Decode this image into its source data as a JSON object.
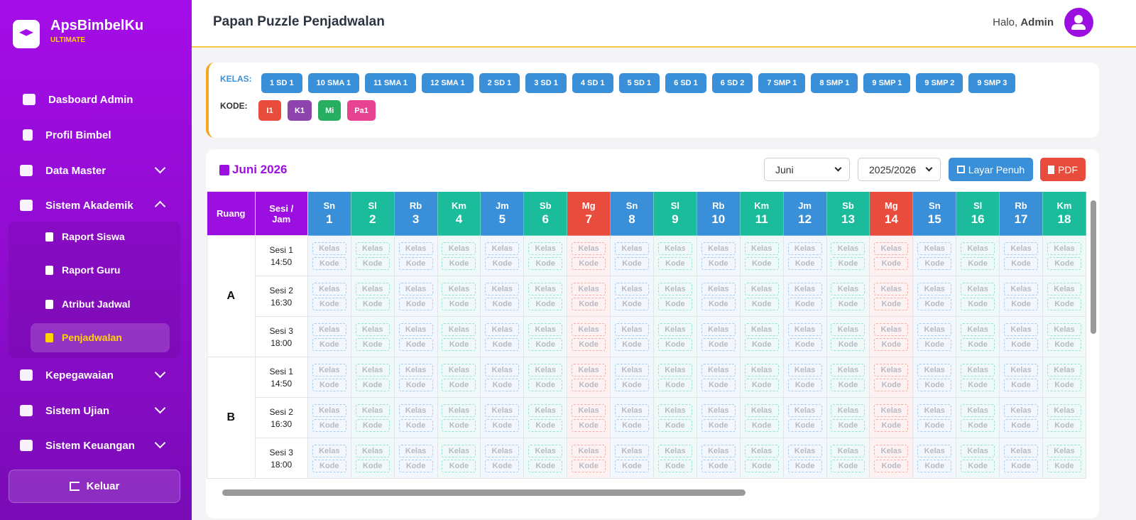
{
  "sidebar": {
    "brand": "ApsBimbelKu",
    "edition": "ULTIMATE",
    "menu": [
      "Dasboard Admin",
      "Profil Bimbel",
      "Data Master",
      "Sistem Akademik",
      "Kepegawaian",
      "Sistem Ujian",
      "Sistem Keuangan"
    ],
    "submenu": [
      "Raport Siswa",
      "Raport Guru",
      "Atribut Jadwal",
      "Penjadwalan"
    ],
    "logout": "Keluar"
  },
  "header": {
    "title": "Papan Puzzle Penjadwalan",
    "greeting": "Halo,",
    "user": "Admin"
  },
  "palette": {
    "kelas_label": "KELAS:",
    "classes": [
      "1 SD 1",
      "10 SMA 1",
      "11 SMA 1",
      "12 SMA 1",
      "2 SD 1",
      "3 SD 1",
      "4 SD 1",
      "5 SD 1",
      "6 SD 1",
      "6 SD 2",
      "7 SMP 1",
      "8 SMP 1",
      "9 SMP 1",
      "9 SMP 2",
      "9 SMP 3"
    ],
    "class_color": "#3a8fd9",
    "kode_label": "KODE:",
    "codes": [
      {
        "label": "I1",
        "color": "#e74c3c"
      },
      {
        "label": "K1",
        "color": "#8e44ad"
      },
      {
        "label": "Mi",
        "color": "#27ae60"
      },
      {
        "label": "Pa1",
        "color": "#e84393"
      }
    ]
  },
  "schedule": {
    "title": "Juni 2026",
    "month": "Juni",
    "year": "2025/2026",
    "fullscreen": "Layar Penuh",
    "pdf": "PDF",
    "room_header": "Ruang",
    "session_header": "Sesi / Jam",
    "days": [
      {
        "name": "Sn",
        "date": 1,
        "color": "#3a8fd9"
      },
      {
        "name": "Sl",
        "date": 2,
        "color": "#1abc9c"
      },
      {
        "name": "Rb",
        "date": 3,
        "color": "#3a8fd9"
      },
      {
        "name": "Km",
        "date": 4,
        "color": "#1abc9c"
      },
      {
        "name": "Jm",
        "date": 5,
        "color": "#3a8fd9"
      },
      {
        "name": "Sb",
        "date": 6,
        "color": "#1abc9c"
      },
      {
        "name": "Mg",
        "date": 7,
        "color": "#e74c3c"
      },
      {
        "name": "Sn",
        "date": 8,
        "color": "#3a8fd9"
      },
      {
        "name": "Sl",
        "date": 9,
        "color": "#1abc9c"
      },
      {
        "name": "Rb",
        "date": 10,
        "color": "#3a8fd9"
      },
      {
        "name": "Km",
        "date": 11,
        "color": "#1abc9c"
      },
      {
        "name": "Jm",
        "date": 12,
        "color": "#3a8fd9"
      },
      {
        "name": "Sb",
        "date": 13,
        "color": "#1abc9c"
      },
      {
        "name": "Mg",
        "date": 14,
        "color": "#e74c3c"
      },
      {
        "name": "Sn",
        "date": 15,
        "color": "#3a8fd9"
      },
      {
        "name": "Sl",
        "date": 16,
        "color": "#1abc9c"
      },
      {
        "name": "Rb",
        "date": 17,
        "color": "#3a8fd9"
      },
      {
        "name": "Km",
        "date": 18,
        "color": "#1abc9c"
      }
    ],
    "rooms": [
      {
        "name": "A",
        "sessions": [
          {
            "name": "Sesi 1",
            "time": "14:50"
          },
          {
            "name": "Sesi 2",
            "time": "16:30"
          },
          {
            "name": "Sesi 3",
            "time": "18:00"
          }
        ]
      },
      {
        "name": "B",
        "sessions": [
          {
            "name": "Sesi 1",
            "time": "14:50"
          },
          {
            "name": "Sesi 2",
            "time": "16:30"
          },
          {
            "name": "Sesi 3",
            "time": "18:00"
          }
        ]
      }
    ],
    "slot_labels": {
      "kelas": "Kelas",
      "kode": "Kode"
    }
  }
}
